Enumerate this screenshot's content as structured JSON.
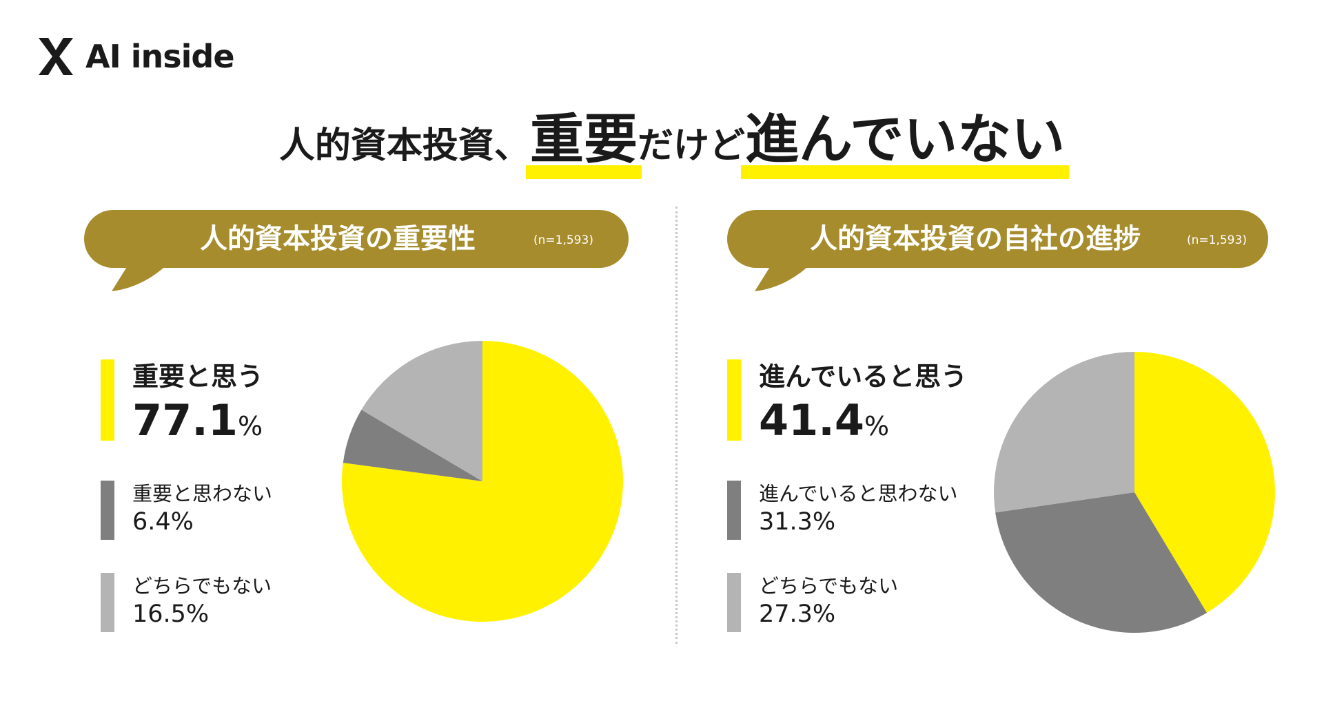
{
  "brand": {
    "logo_text": "AI inside"
  },
  "headline": {
    "part1": "人的資本投資、",
    "part2": "重要",
    "part3": "だけど",
    "part4": "進んでいない"
  },
  "colors": {
    "yellow": "#fff100",
    "dark_gray": "#7f7f7f",
    "light_gray": "#b4b4b4",
    "bubble": "#a68c2c"
  },
  "chart_data": [
    {
      "type": "pie",
      "title": "人的資本投資の重要性",
      "sample_size": "(n=1,593)",
      "unit": "%",
      "slices": [
        {
          "label": "重要と思う",
          "value": 77.1,
          "value_text": "77.1",
          "color": "#fff100"
        },
        {
          "label": "重要と思わない",
          "value": 6.4,
          "value_text": "6.4%",
          "color": "#7f7f7f"
        },
        {
          "label": "どちらでもない",
          "value": 16.5,
          "value_text": "16.5%",
          "color": "#b4b4b4"
        }
      ]
    },
    {
      "type": "pie",
      "title": "人的資本投資の自社の進捗",
      "sample_size": "(n=1,593)",
      "unit": "%",
      "slices": [
        {
          "label": "進んでいると思う",
          "value": 41.4,
          "value_text": "41.4",
          "color": "#fff100"
        },
        {
          "label": "進んでいると思わない",
          "value": 31.3,
          "value_text": "31.3%",
          "color": "#7f7f7f"
        },
        {
          "label": "どちらでもない",
          "value": 27.3,
          "value_text": "27.3%",
          "color": "#b4b4b4"
        }
      ]
    }
  ]
}
